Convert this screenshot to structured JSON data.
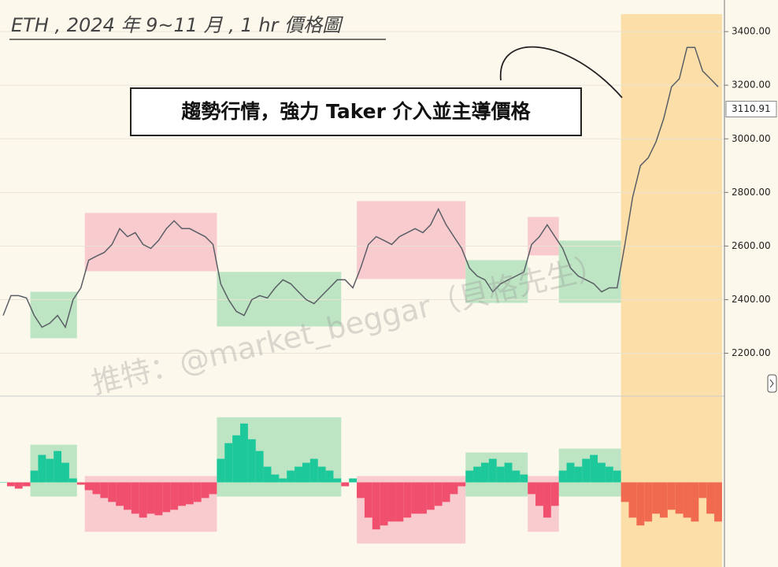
{
  "title": "ETH , 2024 年 9~11 月 , 1 hr 價格圖",
  "annotation": "趨勢行情，強力 Taker 介入並主導價格",
  "watermark": "推特：@market_beggar（貝格先生）",
  "chart_data": [
    {
      "type": "line",
      "color": "#5a5f66",
      "values": [
        2341,
        2415,
        2415,
        2406,
        2341,
        2297,
        2312,
        2341,
        2297,
        2400,
        2444,
        2547,
        2562,
        2576,
        2606,
        2665,
        2635,
        2650,
        2606,
        2591,
        2621,
        2665,
        2694,
        2665,
        2665,
        2650,
        2635,
        2606,
        2459,
        2400,
        2356,
        2341,
        2400,
        2415,
        2406,
        2444,
        2474,
        2459,
        2429,
        2400,
        2385,
        2415,
        2444,
        2474,
        2474,
        2444,
        2518,
        2606,
        2635,
        2621,
        2606,
        2635,
        2650,
        2665,
        2650,
        2679,
        2738,
        2679,
        2635,
        2591,
        2518,
        2488,
        2474,
        2429,
        2459,
        2474,
        2488,
        2503,
        2606,
        2635,
        2679,
        2635,
        2591,
        2518,
        2488,
        2474,
        2459,
        2429,
        2444,
        2444,
        2606,
        2782,
        2900,
        2929,
        2988,
        3076,
        3194,
        3224,
        3341,
        3341,
        3253,
        3224,
        3194
      ],
      "ylim": [
        2040,
        3465
      ],
      "yticks": [
        {
          "value": 2200,
          "label": "2200.00"
        },
        {
          "value": 2400,
          "label": "2400.00"
        },
        {
          "value": 2600,
          "label": "2600.00"
        },
        {
          "value": 2800,
          "label": "2800.00"
        },
        {
          "value": 3000,
          "label": "3000.00"
        },
        {
          "value": 3200,
          "label": "3200.00"
        },
        {
          "value": 3400,
          "label": "3400.00"
        }
      ],
      "current_price": 3110.91,
      "grid": true
    },
    {
      "type": "bar",
      "up_color": "#1dc99a",
      "down_color": "#f0506e",
      "values": [
        0,
        -5,
        -8,
        -5,
        15,
        35,
        30,
        40,
        25,
        5,
        -3,
        -10,
        -15,
        -20,
        -25,
        -30,
        -35,
        -40,
        -45,
        -40,
        -42,
        -38,
        -35,
        -30,
        -28,
        -25,
        -20,
        -15,
        30,
        50,
        60,
        75,
        55,
        40,
        20,
        10,
        5,
        15,
        20,
        25,
        30,
        20,
        15,
        5,
        -5,
        5,
        -20,
        -45,
        -60,
        -55,
        -50,
        -50,
        -45,
        -40,
        -40,
        -35,
        -30,
        -25,
        -15,
        -5,
        15,
        20,
        25,
        30,
        20,
        25,
        15,
        10,
        -15,
        -30,
        -45,
        -30,
        15,
        25,
        20,
        30,
        35,
        25,
        20,
        15,
        -25,
        -45,
        -55,
        -50,
        -40,
        -45,
        -35,
        -40,
        -45,
        -50,
        -20,
        -40,
        -50
      ],
      "ylim": [
        -108,
        110
      ]
    }
  ],
  "regions": [
    {
      "start": 4,
      "end": 9,
      "color": "#a8dfb6"
    },
    {
      "start": 11,
      "end": 27,
      "color": "#f6bcc6"
    },
    {
      "start": 28,
      "end": 43,
      "color": "#a8dfb6"
    },
    {
      "start": 46,
      "end": 59,
      "color": "#f6bcc6"
    },
    {
      "start": 60,
      "end": 67,
      "color": "#a8dfb6"
    },
    {
      "start": 68,
      "end": 71,
      "color": "#f6bcc6"
    },
    {
      "start": 72,
      "end": 79,
      "color": "#a8dfb6"
    },
    {
      "start": 80,
      "end": 92,
      "color": "#f9d592",
      "full_height": true
    }
  ]
}
